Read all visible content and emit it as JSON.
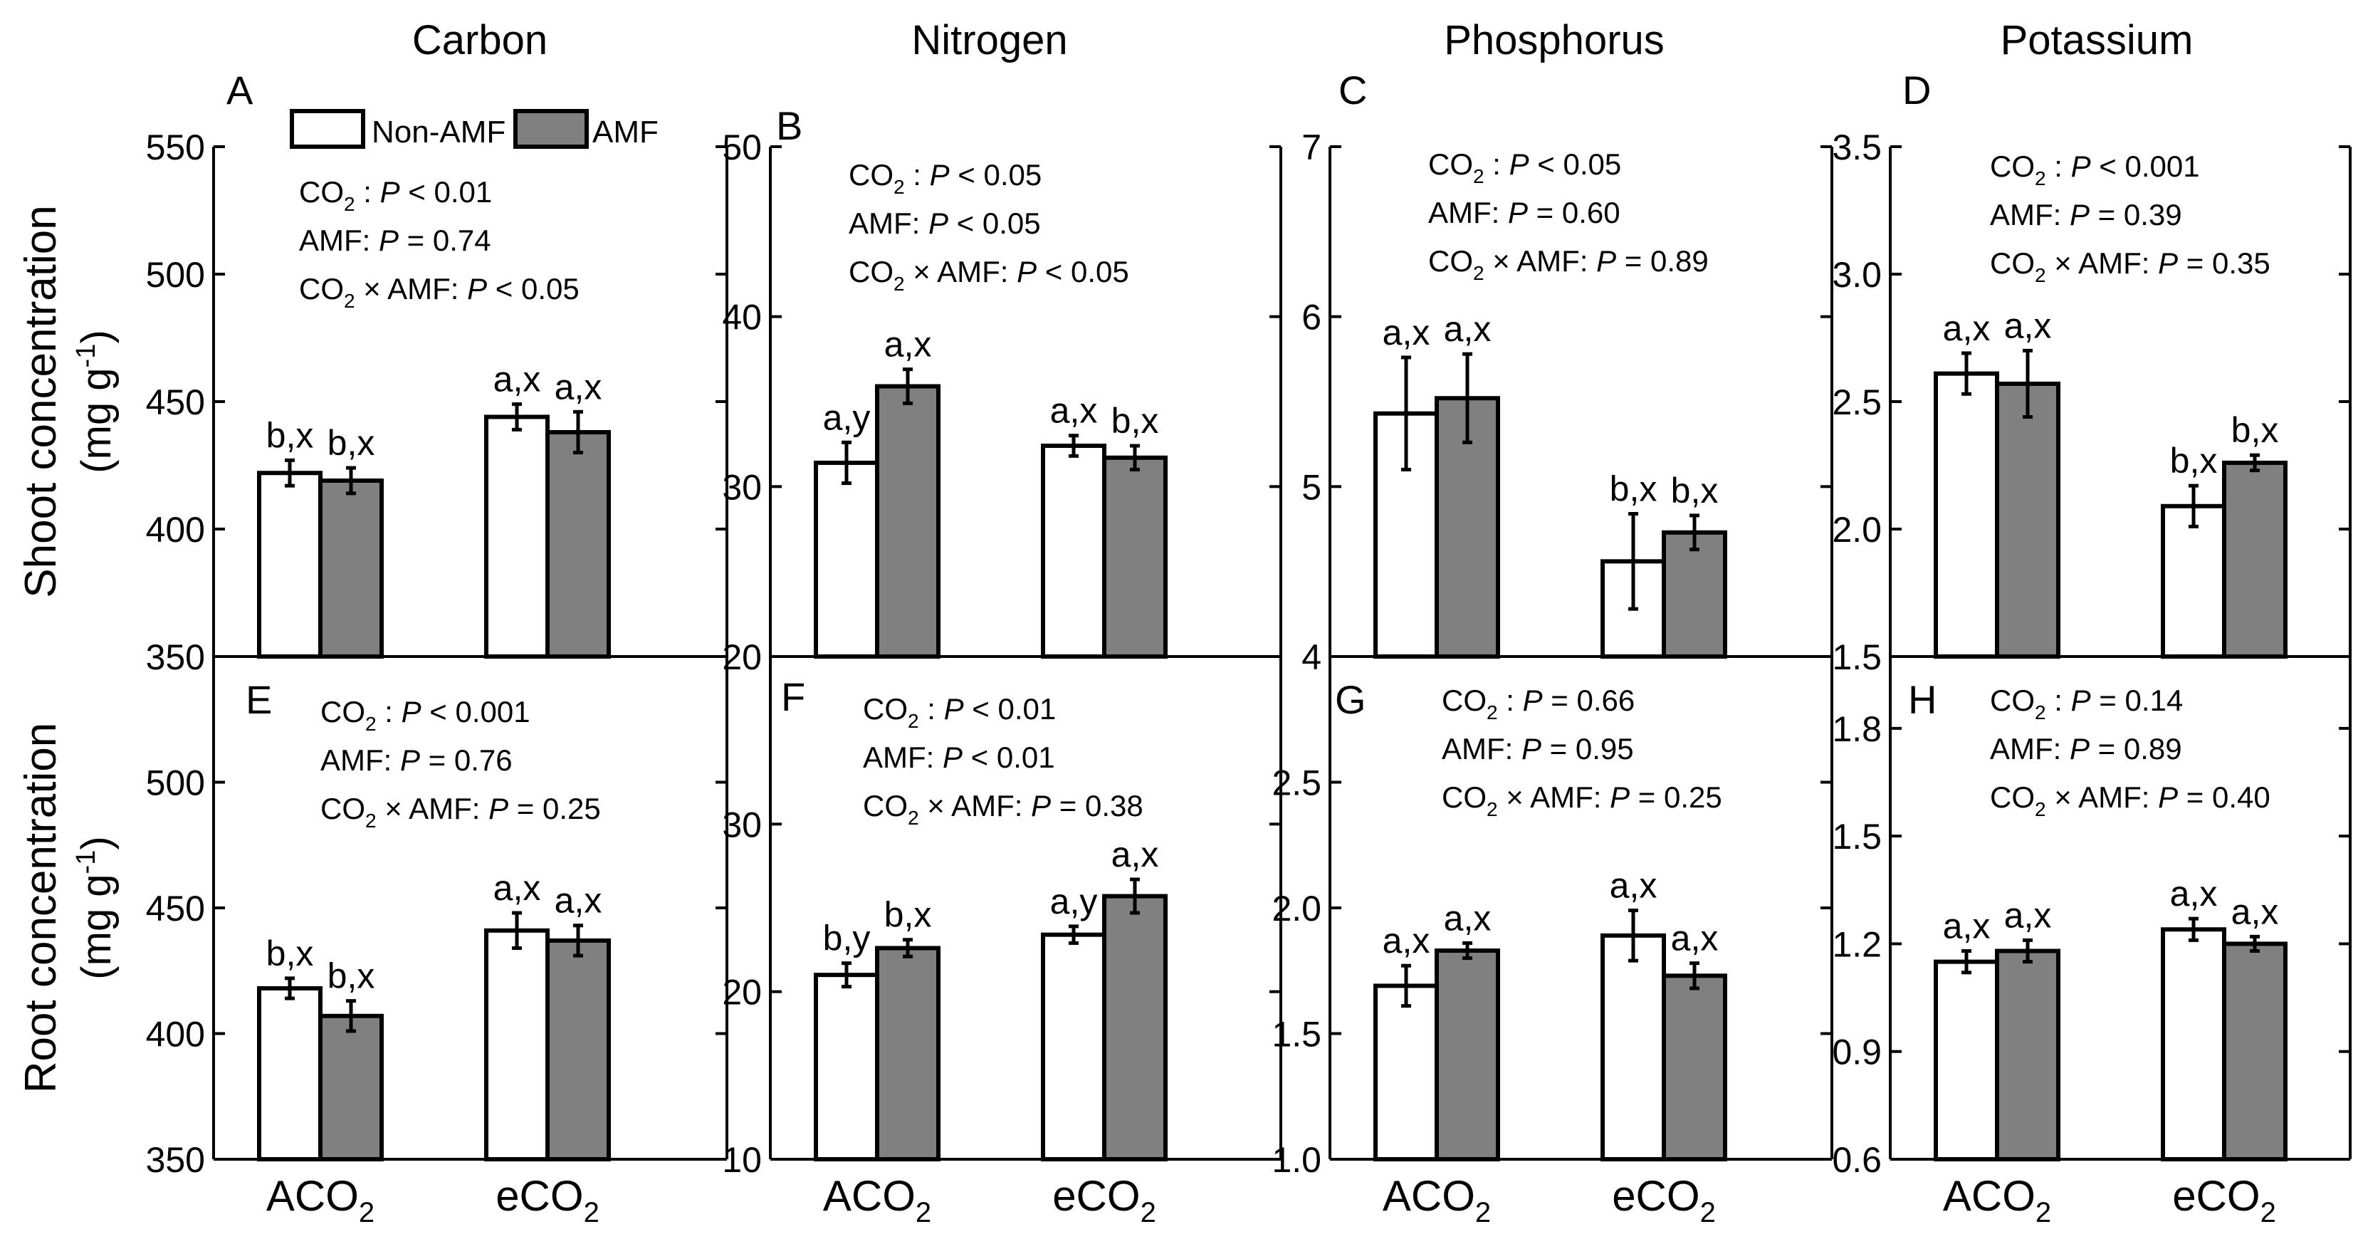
{
  "figure": {
    "columns": [
      "Carbon",
      "Nitrogen",
      "Phosphorus",
      "Potassium"
    ],
    "rows": [
      "Shoot concentration",
      "Root concentration"
    ],
    "unit_text": "(mg g",
    "unit_sup": "-1",
    "unit_close": ")",
    "categories_html": [
      "ACO",
      "eCO"
    ],
    "legend": [
      {
        "name": "Non-AMF",
        "color": "#ffffff"
      },
      {
        "name": "AMF",
        "color": "#808080"
      }
    ],
    "colors": {
      "non_amf": "#ffffff",
      "amf": "#808080",
      "stroke": "#000000"
    }
  },
  "chart_data": [
    {
      "panel": "A",
      "type": "bar",
      "element": "Carbon",
      "tissue": "Shoot",
      "categories": [
        "ACO2",
        "eCO2"
      ],
      "ylim": [
        350,
        550
      ],
      "yticks": [
        350,
        400,
        450,
        500,
        550
      ],
      "series": [
        {
          "name": "Non-AMF",
          "values": [
            422,
            444
          ],
          "errors": [
            5,
            5
          ],
          "labels": [
            "b,x",
            "a,x"
          ]
        },
        {
          "name": "AMF",
          "values": [
            419,
            438
          ],
          "errors": [
            5,
            8
          ],
          "labels": [
            "b,x",
            "a,x"
          ]
        }
      ],
      "stats": [
        {
          "term": "CO2",
          "p": "P < 0.01"
        },
        {
          "term": "AMF",
          "p": "P = 0.74"
        },
        {
          "term": "CO2 × AMF",
          "p": "P < 0.05"
        }
      ]
    },
    {
      "panel": "B",
      "type": "bar",
      "element": "Nitrogen",
      "tissue": "Shoot",
      "categories": [
        "ACO2",
        "eCO2"
      ],
      "ylim": [
        20,
        50
      ],
      "yticks": [
        20,
        30,
        40,
        50
      ],
      "series": [
        {
          "name": "Non-AMF",
          "values": [
            31.4,
            32.4
          ],
          "errors": [
            1.2,
            0.6
          ],
          "labels": [
            "a,y",
            "a,x"
          ]
        },
        {
          "name": "AMF",
          "values": [
            35.9,
            31.7
          ],
          "errors": [
            1.0,
            0.7
          ],
          "labels": [
            "a,x",
            "b,x"
          ]
        }
      ],
      "stats": [
        {
          "term": "CO2",
          "p": "P < 0.05"
        },
        {
          "term": "AMF",
          "p": "P < 0.05"
        },
        {
          "term": "CO2 × AMF",
          "p": "P < 0.05"
        }
      ]
    },
    {
      "panel": "C",
      "type": "bar",
      "element": "Phosphorus",
      "tissue": "Shoot",
      "categories": [
        "ACO2",
        "eCO2"
      ],
      "ylim": [
        4,
        7
      ],
      "yticks": [
        4,
        5,
        6,
        7
      ],
      "series": [
        {
          "name": "Non-AMF",
          "values": [
            5.43,
            4.56
          ],
          "errors": [
            0.33,
            0.28
          ],
          "labels": [
            "a,x",
            "b,x"
          ]
        },
        {
          "name": "AMF",
          "values": [
            5.52,
            4.73
          ],
          "errors": [
            0.26,
            0.1
          ],
          "labels": [
            "a,x",
            "b,x"
          ]
        }
      ],
      "stats": [
        {
          "term": "CO2",
          "p": "P < 0.05"
        },
        {
          "term": "AMF",
          "p": "P = 0.60"
        },
        {
          "term": "CO2 × AMF",
          "p": "P = 0.89"
        }
      ]
    },
    {
      "panel": "D",
      "type": "bar",
      "element": "Potassium",
      "tissue": "Shoot",
      "categories": [
        "ACO2",
        "eCO2"
      ],
      "ylim": [
        1.5,
        3.5
      ],
      "yticks": [
        1.5,
        2.0,
        2.5,
        3.0,
        3.5
      ],
      "series": [
        {
          "name": "Non-AMF",
          "values": [
            2.61,
            2.09
          ],
          "errors": [
            0.08,
            0.08
          ],
          "labels": [
            "a,x",
            "b,x"
          ]
        },
        {
          "name": "AMF",
          "values": [
            2.57,
            2.26
          ],
          "errors": [
            0.13,
            0.03
          ],
          "labels": [
            "a,x",
            "b,x"
          ]
        }
      ],
      "stats": [
        {
          "term": "CO2",
          "p": "P < 0.001"
        },
        {
          "term": "AMF",
          "p": "P = 0.39"
        },
        {
          "term": "CO2 × AMF",
          "p": "P = 0.35"
        }
      ]
    },
    {
      "panel": "E",
      "type": "bar",
      "element": "Carbon",
      "tissue": "Root",
      "categories": [
        "ACO2",
        "eCO2"
      ],
      "ylim": [
        350,
        550
      ],
      "yticks": [
        350,
        400,
        450,
        500
      ],
      "series": [
        {
          "name": "Non-AMF",
          "values": [
            418,
            441
          ],
          "errors": [
            4,
            7
          ],
          "labels": [
            "b,x",
            "a,x"
          ]
        },
        {
          "name": "AMF",
          "values": [
            407,
            437
          ],
          "errors": [
            6,
            6
          ],
          "labels": [
            "b,x",
            "a,x"
          ]
        }
      ],
      "stats": [
        {
          "term": "CO2",
          "p": "P < 0.001"
        },
        {
          "term": "AMF",
          "p": "P = 0.76"
        },
        {
          "term": "CO2 × AMF",
          "p": "P = 0.25"
        }
      ]
    },
    {
      "panel": "F",
      "type": "bar",
      "element": "Nitrogen",
      "tissue": "Root",
      "categories": [
        "ACO2",
        "eCO2"
      ],
      "ylim": [
        10,
        40
      ],
      "yticks": [
        10,
        20,
        30
      ],
      "series": [
        {
          "name": "Non-AMF",
          "values": [
            21.0,
            23.4
          ],
          "errors": [
            0.7,
            0.5
          ],
          "labels": [
            "b,y",
            "a,y"
          ]
        },
        {
          "name": "AMF",
          "values": [
            22.6,
            25.7
          ],
          "errors": [
            0.5,
            1.0
          ],
          "labels": [
            "b,x",
            "a,x"
          ]
        }
      ],
      "stats": [
        {
          "term": "CO2",
          "p": "P < 0.01"
        },
        {
          "term": "AMF",
          "p": "P < 0.01"
        },
        {
          "term": "CO2 × AMF",
          "p": "P = 0.38"
        }
      ]
    },
    {
      "panel": "G",
      "type": "bar",
      "element": "Phosphorus",
      "tissue": "Root",
      "categories": [
        "ACO2",
        "eCO2"
      ],
      "ylim": [
        1.0,
        3.0
      ],
      "yticks": [
        1.0,
        1.5,
        2.0,
        2.5
      ],
      "series": [
        {
          "name": "Non-AMF",
          "values": [
            1.69,
            1.89
          ],
          "errors": [
            0.08,
            0.1
          ],
          "labels": [
            "a,x",
            "a,x"
          ]
        },
        {
          "name": "AMF",
          "values": [
            1.83,
            1.73
          ],
          "errors": [
            0.03,
            0.05
          ],
          "labels": [
            "a,x",
            "a,x"
          ]
        }
      ],
      "stats": [
        {
          "term": "CO2",
          "p": "P = 0.66"
        },
        {
          "term": "AMF",
          "p": "P = 0.95"
        },
        {
          "term": "CO2 × AMF",
          "p": "P = 0.25"
        }
      ]
    },
    {
      "panel": "H",
      "type": "bar",
      "element": "Potassium",
      "tissue": "Root",
      "categories": [
        "ACO2",
        "eCO2"
      ],
      "ylim": [
        0.6,
        2.0
      ],
      "yticks": [
        0.6,
        0.9,
        1.2,
        1.5,
        1.8
      ],
      "series": [
        {
          "name": "Non-AMF",
          "values": [
            1.15,
            1.24
          ],
          "errors": [
            0.03,
            0.03
          ],
          "labels": [
            "a,x",
            "a,x"
          ]
        },
        {
          "name": "AMF",
          "values": [
            1.18,
            1.2
          ],
          "errors": [
            0.03,
            0.02
          ],
          "labels": [
            "a,x",
            "a,x"
          ]
        }
      ],
      "stats": [
        {
          "term": "CO2",
          "p": "P = 0.14"
        },
        {
          "term": "AMF",
          "p": "P = 0.89"
        },
        {
          "term": "CO2 × AMF",
          "p": "P = 0.40"
        }
      ]
    }
  ]
}
